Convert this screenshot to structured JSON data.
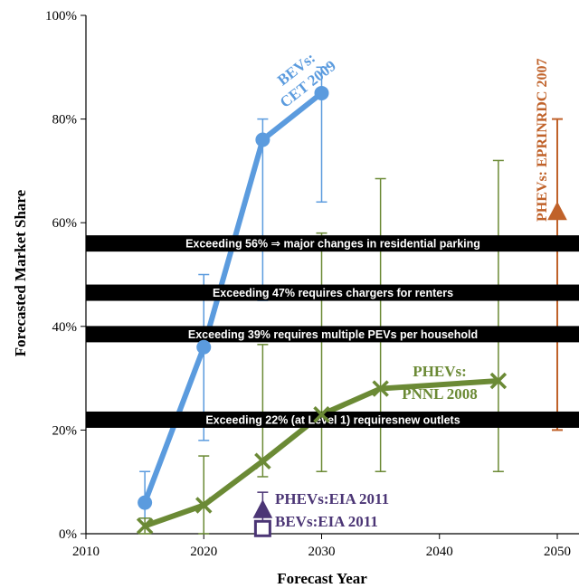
{
  "chart_data": {
    "type": "line",
    "xlabel": "Forecast Year",
    "ylabel": "Forecasted Market Share",
    "xlim": [
      2010,
      2050
    ],
    "ylim": [
      0,
      100
    ],
    "x_ticks": [
      "2010",
      "2020",
      "2030",
      "2040",
      "2050"
    ],
    "y_ticks": [
      "0%",
      "20%",
      "40%",
      "60%",
      "80%",
      "100%"
    ],
    "grid": false,
    "series": [
      {
        "name_lines": [
          "BEVs:",
          "CET 2009"
        ],
        "color": "#5b9bde",
        "marker": "circle",
        "points": [
          {
            "x": 2015,
            "y": 6,
            "err_low": 3,
            "err_high": 12
          },
          {
            "x": 2020,
            "y": 36,
            "err_low": 18,
            "err_high": 50
          },
          {
            "x": 2025,
            "y": 76,
            "err_low": 45,
            "err_high": 80
          },
          {
            "x": 2030,
            "y": 85,
            "err_low": 64,
            "err_high": 90
          }
        ]
      },
      {
        "name_lines": [
          "PHEVs:",
          "PNNL 2008"
        ],
        "color": "#6b8a35",
        "marker": "x",
        "points": [
          {
            "x": 2015,
            "y": 1.5,
            "err_low": 0,
            "err_high": 3
          },
          {
            "x": 2020,
            "y": 5.5,
            "err_low": 0,
            "err_high": 15
          },
          {
            "x": 2025,
            "y": 14,
            "err_low": 11,
            "err_high": 36.5
          },
          {
            "x": 2030,
            "y": 23,
            "err_low": 12,
            "err_high": 58
          },
          {
            "x": 2035,
            "y": 28,
            "err_low": 12,
            "err_high": 68.5
          },
          {
            "x": 2045,
            "y": 29.5,
            "err_low": 12,
            "err_high": 72
          }
        ]
      }
    ],
    "single_points": [
      {
        "label": "PHEVs:EIA 2011",
        "x": 2025,
        "y": 4.5,
        "color": "#4b3575",
        "marker": "triangle",
        "err_low": 1,
        "err_high": 8
      },
      {
        "label": "BEVs:EIA 2011",
        "x": 2025,
        "y": 1,
        "color": "#4b3575",
        "marker": "square",
        "err_low": 0,
        "err_high": 2
      },
      {
        "label": "PHEVs: EPRINRDC 2007",
        "x": 2050,
        "y": 62,
        "color": "#c0622a",
        "marker": "triangle",
        "err_low": 20,
        "err_high": 80
      }
    ],
    "thresholds": [
      {
        "y": 56,
        "text": "Exceeding 56% ⇒ major changes in residential parking"
      },
      {
        "y": 46.5,
        "text": "Exceeding 47% requires chargers for renters"
      },
      {
        "y": 38.5,
        "text": "Exceeding 39% requires multiple PEVs per household"
      },
      {
        "y": 22,
        "text": "Exceeding 22% (at Level 1) requiresnew outlets"
      }
    ]
  }
}
